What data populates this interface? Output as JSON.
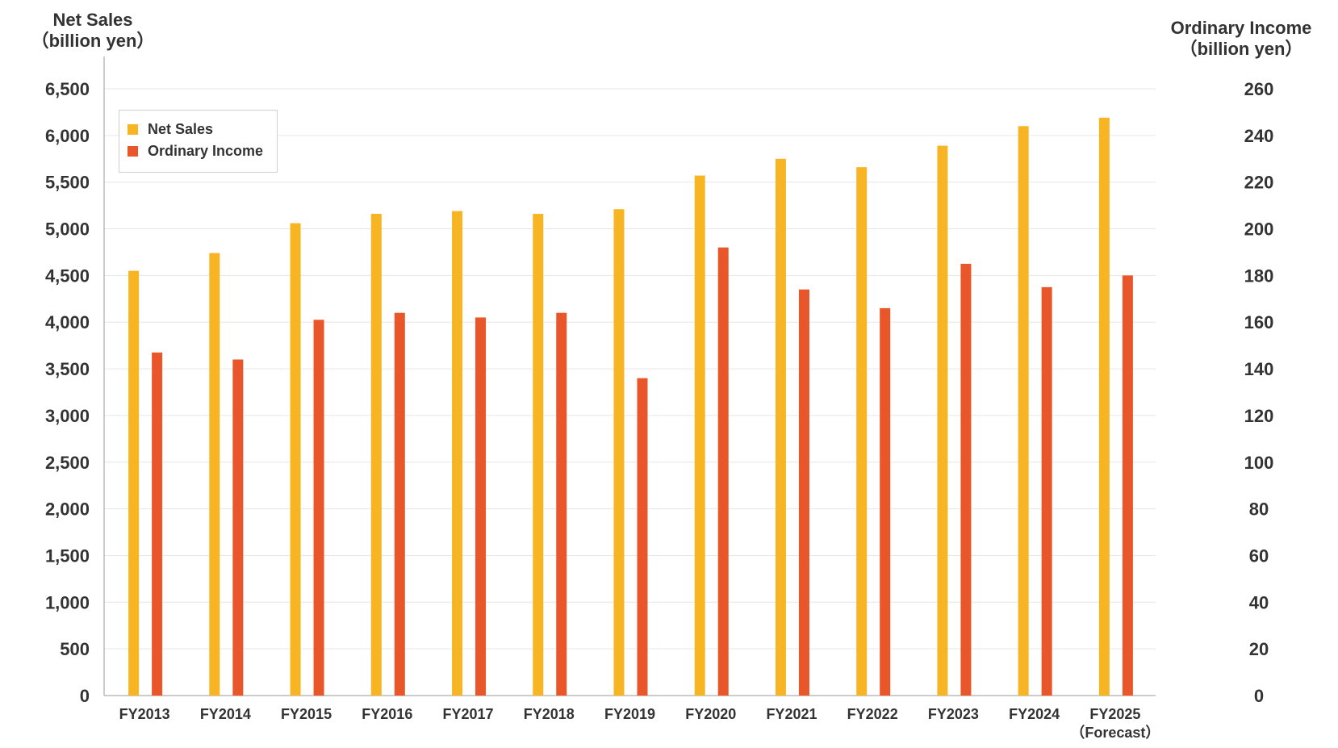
{
  "axes": {
    "left_title_line1": "Net Sales",
    "left_title_line2": "（billion yen）",
    "right_title_line1": "Ordinary Income",
    "right_title_line2": "（billion yen）"
  },
  "legend": {
    "net_sales_label": "Net Sales",
    "ordinary_income_label": "Ordinary Income"
  },
  "colors": {
    "net_sales": "#F7B523",
    "ordinary_income": "#E8562A",
    "grid": "#e6e6e6",
    "axis": "#999999"
  },
  "chart_data": {
    "type": "bar",
    "categories": [
      "FY2013",
      "FY2014",
      "FY2015",
      "FY2016",
      "FY2017",
      "FY2018",
      "FY2019",
      "FY2020",
      "FY2021",
      "FY2022",
      "FY2023",
      "FY2024",
      "FY2025"
    ],
    "category_sublabels": [
      "",
      "",
      "",
      "",
      "",
      "",
      "",
      "",
      "",
      "",
      "",
      "",
      "（Forecast）"
    ],
    "series": [
      {
        "name": "Net Sales",
        "axis": "left",
        "values": [
          4550,
          4740,
          5060,
          5160,
          5190,
          5160,
          5210,
          5570,
          5750,
          5660,
          5890,
          6100,
          6190
        ]
      },
      {
        "name": "Ordinary Income",
        "axis": "right",
        "values": [
          147,
          144,
          161,
          164,
          162,
          164,
          136,
          192,
          174,
          166,
          185,
          175,
          180
        ]
      }
    ],
    "left_axis": {
      "min": 0,
      "max": 6500,
      "ticks": [
        0,
        500,
        1000,
        1500,
        2000,
        2500,
        3000,
        3500,
        4000,
        4500,
        5000,
        5500,
        6000,
        6500
      ],
      "tick_labels": [
        "0",
        "500",
        "1,000",
        "1,500",
        "2,000",
        "2,500",
        "3,000",
        "3,500",
        "4,000",
        "4,500",
        "5,000",
        "5,500",
        "6,000",
        "6,500"
      ]
    },
    "right_axis": {
      "min": 0,
      "max": 260,
      "ticks": [
        0,
        20,
        40,
        60,
        80,
        100,
        120,
        140,
        160,
        180,
        200,
        220,
        240,
        260
      ],
      "tick_labels": [
        "0",
        "20",
        "40",
        "60",
        "80",
        "100",
        "120",
        "140",
        "160",
        "180",
        "200",
        "220",
        "240",
        "260"
      ]
    },
    "grid": true,
    "legend_position": "top-left"
  }
}
